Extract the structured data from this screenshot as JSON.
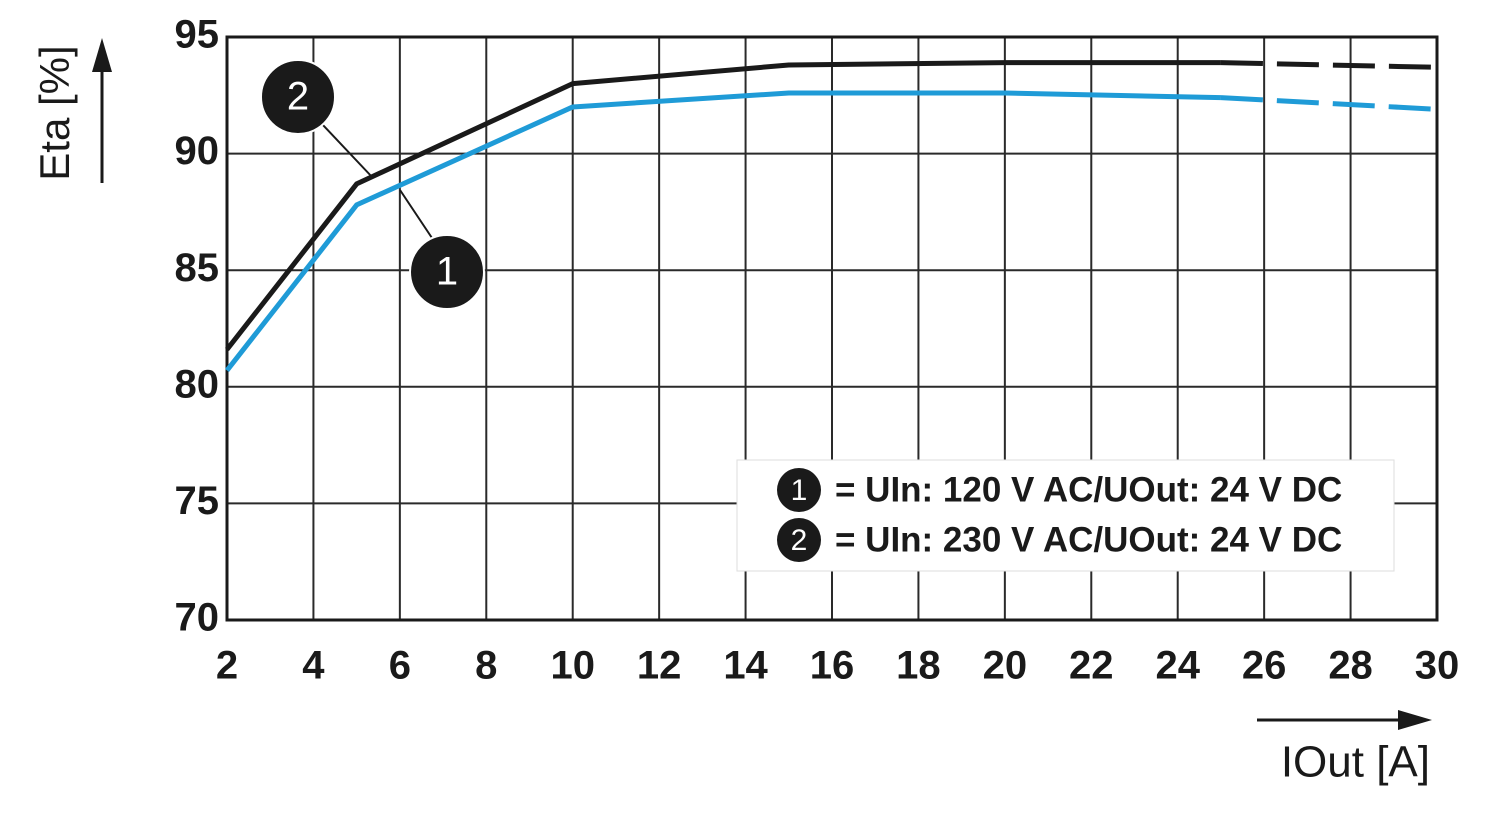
{
  "chart_data": {
    "type": "line",
    "xlabel": "IOut [A]",
    "ylabel": "Eta [%]",
    "x": [
      2,
      5,
      10,
      15,
      20,
      25,
      30
    ],
    "series": [
      {
        "name": "= UIn: 120 V AC/UOut: 24 V DC",
        "badge": "1",
        "color": "#1f9bd7",
        "dashed_from": 25,
        "values": [
          80.7,
          87.8,
          92.0,
          92.6,
          92.6,
          92.4,
          91.9
        ]
      },
      {
        "name": "= UIn: 230 V AC/UOut: 24 V DC",
        "badge": "2",
        "color": "#1a1a1a",
        "dashed_from": 25,
        "values": [
          81.6,
          88.7,
          93.0,
          93.8,
          93.9,
          93.9,
          93.7
        ]
      }
    ],
    "xlim": [
      2,
      30
    ],
    "xticks": [
      2,
      4,
      6,
      8,
      10,
      12,
      14,
      16,
      18,
      20,
      22,
      24,
      26,
      28,
      30
    ],
    "ylim": [
      70,
      95
    ],
    "yticks": [
      70,
      75,
      80,
      85,
      90,
      95
    ],
    "grid": true
  }
}
